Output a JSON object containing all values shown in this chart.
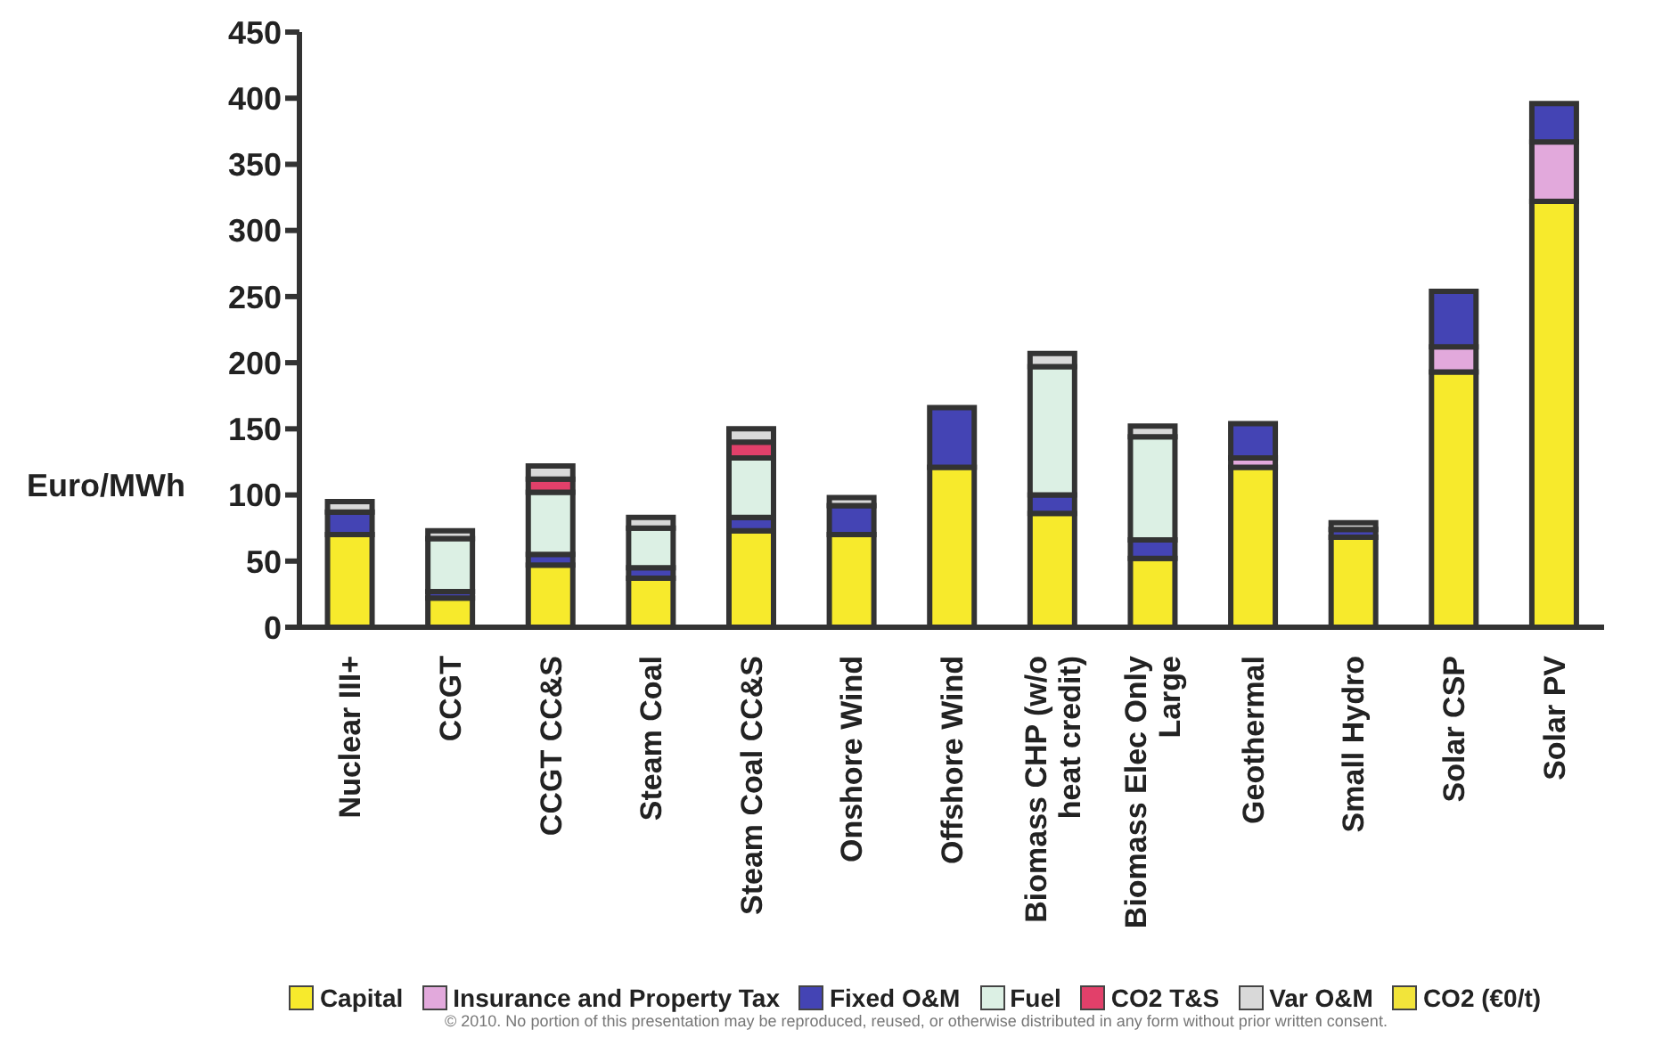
{
  "chart_data": {
    "type": "bar",
    "stacked": true,
    "ylabel": "Euro/MWh",
    "categories": [
      "Nuclear III+",
      "CCGT",
      "CCGT CC&S",
      "Steam Coal",
      "Steam Coal CC&S",
      "Onshore Wind",
      "Offshore Wind",
      "Biomass CHP (w/o heat credit)",
      "Biomass Elec Only Large",
      "Geothermal",
      "Small Hydro",
      "Solar CSP",
      "Solar PV"
    ],
    "series": [
      {
        "name": "Capital",
        "color": "#f7ea2c",
        "values": [
          70,
          22,
          47,
          37,
          73,
          70,
          121,
          86,
          52,
          121,
          68,
          193,
          322
        ]
      },
      {
        "name": "Insurance and Property Tax",
        "color": "#e2a9dc",
        "values": [
          0,
          0,
          0,
          0,
          0,
          0,
          0,
          0,
          0,
          7,
          0,
          19,
          45
        ]
      },
      {
        "name": "Fixed O&M",
        "color": "#4444b4",
        "values": [
          17,
          5,
          8,
          8,
          10,
          22,
          45,
          14,
          14,
          26,
          6,
          42,
          29
        ]
      },
      {
        "name": "Fuel",
        "color": "#dcf0e4",
        "values": [
          0,
          40,
          47,
          30,
          45,
          0,
          0,
          97,
          78,
          0,
          0,
          0,
          0
        ]
      },
      {
        "name": "CO2 T&S",
        "color": "#e2406a",
        "values": [
          0,
          0,
          10,
          0,
          12,
          0,
          0,
          0,
          0,
          0,
          0,
          0,
          0
        ]
      },
      {
        "name": "Var O&M",
        "color": "#d9d9d9",
        "values": [
          8,
          6,
          10,
          8,
          10,
          6,
          0,
          10,
          8,
          0,
          5,
          0,
          0
        ]
      },
      {
        "name": "CO2 (€0/t)",
        "color": "#f2e43a",
        "values": [
          0,
          0,
          0,
          0,
          0,
          0,
          0,
          0,
          0,
          0,
          0,
          0,
          0
        ]
      }
    ],
    "ylim": [
      0,
      450
    ],
    "yticks": [
      0,
      50,
      100,
      150,
      200,
      250,
      300,
      350,
      400,
      450
    ],
    "grid": false,
    "legend": "bottom",
    "annotations": [
      "© 2010. No portion of this presentation may be reproduced, reused, or otherwise distributed in any form without prior written consent."
    ]
  }
}
